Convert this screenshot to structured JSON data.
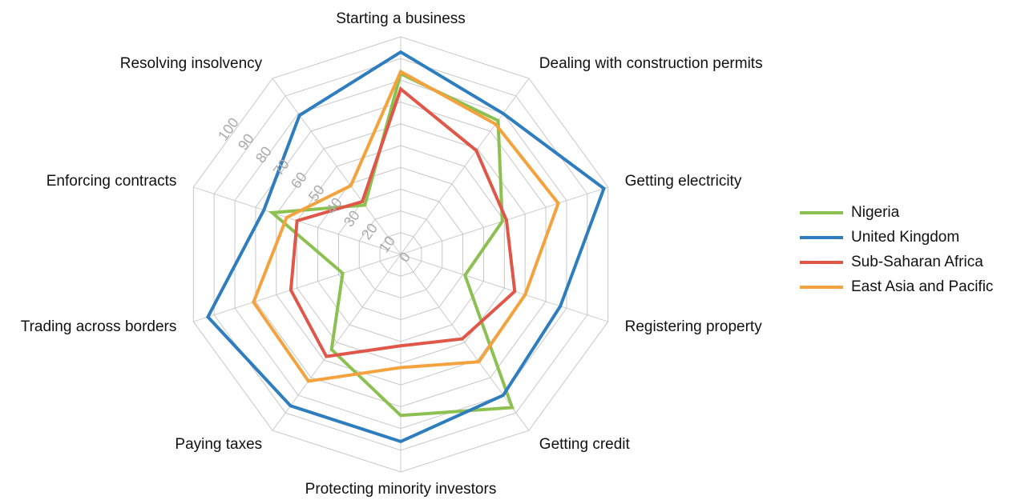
{
  "chart_data": {
    "type": "radar",
    "categories": [
      "Starting a business",
      "Dealing with construction permits",
      "Getting electricity",
      "Registering property",
      "Getting credit",
      "Protecting minority investors",
      "Paying taxes",
      "Trading across borders",
      "Enforcing contracts",
      "Resolving insolvency"
    ],
    "series": [
      {
        "name": "Nigeria",
        "color": "#8cc152",
        "values": [
          83,
          76,
          49,
          31,
          87,
          74,
          54,
          28,
          62,
          28
        ]
      },
      {
        "name": "United Kingdom",
        "color": "#2e7dbf",
        "values": [
          93,
          80,
          98,
          77,
          80,
          86,
          86,
          93,
          66,
          79
        ]
      },
      {
        "name": "Sub-Saharan Africa",
        "color": "#e0574a",
        "values": [
          76,
          59,
          51,
          55,
          48,
          42,
          58,
          53,
          50,
          30
        ]
      },
      {
        "name": "East Asia and Pacific",
        "color": "#f4a23d",
        "values": [
          84,
          74,
          76,
          60,
          61,
          52,
          72,
          71,
          55,
          39
        ]
      }
    ],
    "ylim": [
      0,
      100
    ],
    "yticks": [
      0,
      10,
      20,
      30,
      40,
      50,
      60,
      70,
      80,
      90,
      100
    ],
    "grid": true,
    "legend": "right"
  }
}
